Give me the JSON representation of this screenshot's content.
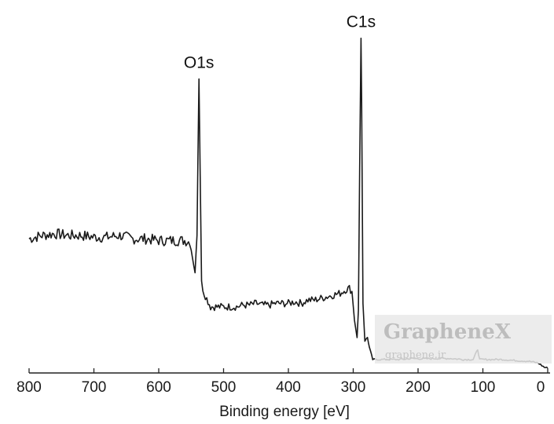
{
  "chart_data": {
    "type": "line",
    "title": "",
    "xlabel": "Binding energy [eV]",
    "ylabel": "",
    "xlim": [
      800,
      0
    ],
    "x_reversed": true,
    "ylim": [
      0,
      100
    ],
    "x_ticks": [
      800,
      700,
      600,
      500,
      400,
      300,
      200,
      100,
      0
    ],
    "grid": false,
    "legend": "none",
    "colors": {
      "line": "#1a1a1a",
      "axis": "#222222"
    },
    "series": [
      {
        "points": [
          [
            800,
            39
          ],
          [
            780,
            40
          ],
          [
            760,
            40.5
          ],
          [
            740,
            40
          ],
          [
            720,
            40
          ],
          [
            700,
            39.5
          ],
          [
            680,
            39.5
          ],
          [
            660,
            40
          ],
          [
            640,
            39
          ],
          [
            620,
            39
          ],
          [
            600,
            38.5
          ],
          [
            580,
            38.5
          ],
          [
            560,
            38.5
          ],
          [
            552,
            38
          ],
          [
            548,
            34
          ],
          [
            544,
            29
          ],
          [
            541,
            40
          ],
          [
            538,
            86
          ],
          [
            536,
            57
          ],
          [
            534,
            26
          ],
          [
            530,
            23
          ],
          [
            520,
            19
          ],
          [
            510,
            19
          ],
          [
            500,
            19
          ],
          [
            490,
            19
          ],
          [
            480,
            19
          ],
          [
            470,
            19.5
          ],
          [
            460,
            19.5
          ],
          [
            450,
            20
          ],
          [
            440,
            19.5
          ],
          [
            430,
            19.5
          ],
          [
            420,
            20
          ],
          [
            410,
            20
          ],
          [
            400,
            20
          ],
          [
            390,
            20.5
          ],
          [
            380,
            20
          ],
          [
            370,
            21
          ],
          [
            360,
            21
          ],
          [
            350,
            21.5
          ],
          [
            340,
            22
          ],
          [
            330,
            22.5
          ],
          [
            320,
            23
          ],
          [
            312,
            24
          ],
          [
            306,
            24.5
          ],
          [
            302,
            23.5
          ],
          [
            298,
            15
          ],
          [
            294,
            10
          ],
          [
            292,
            18
          ],
          [
            290,
            60
          ],
          [
            288,
            98
          ],
          [
            287,
            80
          ],
          [
            285,
            20
          ],
          [
            282,
            9
          ],
          [
            278,
            10
          ],
          [
            275,
            7
          ],
          [
            270,
            3.5
          ],
          [
            250,
            3.5
          ],
          [
            230,
            3.5
          ],
          [
            210,
            3.8
          ],
          [
            190,
            3.7
          ],
          [
            170,
            3.8
          ],
          [
            150,
            3.8
          ],
          [
            130,
            3.5
          ],
          [
            115,
            3.5
          ],
          [
            108,
            6.5
          ],
          [
            105,
            3.5
          ],
          [
            90,
            3.5
          ],
          [
            70,
            3.5
          ],
          [
            50,
            3.2
          ],
          [
            30,
            3.0
          ],
          [
            15,
            2.5
          ],
          [
            5,
            1.2
          ],
          [
            0,
            1
          ]
        ]
      }
    ],
    "annotations": [
      {
        "text": "O1s",
        "x": 538
      },
      {
        "text": "C1s",
        "x": 288
      }
    ],
    "watermark": {
      "title": "GrapheneX",
      "subtitle": "graphene.ir"
    }
  }
}
